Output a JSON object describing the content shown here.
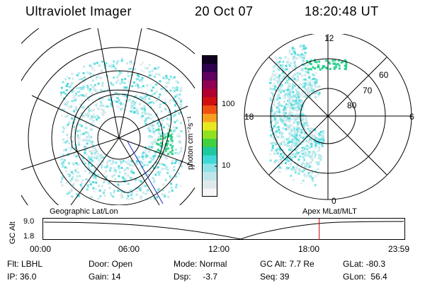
{
  "header": {
    "title": "Ultraviolet Imager",
    "date": "20 Oct 07",
    "time": "18:20:48 UT"
  },
  "colorbar": {
    "unit_label": "photon cm⁻²s⁻¹",
    "ticks": [
      "100",
      "10"
    ],
    "colors": [
      "#f7f7f7",
      "#dfe9ec",
      "#bfe6ea",
      "#8fe3e6",
      "#3fd8d8",
      "#20c8a0",
      "#40d040",
      "#90e020",
      "#e8e820",
      "#f7a020",
      "#f05010",
      "#d01010",
      "#b00030",
      "#900050",
      "#600060",
      "#300050",
      "#100020"
    ]
  },
  "geo_panel": {
    "label": "Geographic Lat/Lon"
  },
  "polar_panel": {
    "label": "Apex  MLat/MLT",
    "mlt_labels": {
      "top": "12",
      "right": "6",
      "bottom": "0",
      "left": "18"
    },
    "mlat_labels": [
      "60",
      "70",
      "80"
    ]
  },
  "timeline": {
    "y_axis_title": "GC Alt",
    "y_ticks": [
      "9.0",
      "1.8"
    ],
    "x_ticks": [
      "00:00",
      "06:00",
      "12:00",
      "18:00",
      "23:59"
    ],
    "current_time_fraction": 0.764,
    "line_color": "#cc0000"
  },
  "info": {
    "flt": "Flt: LBHL",
    "ip": "IP: 36.0",
    "door": "Door: Open",
    "gain": "Gain: 14",
    "mode": "Mode: Normal",
    "dsp": "Dsp:     -3.7",
    "gc_alt": "GC Alt: 7.7 Re",
    "seq": "Seq: 39",
    "glat": "GLat: -80.3",
    "glon": "GLon:  56.4"
  }
}
